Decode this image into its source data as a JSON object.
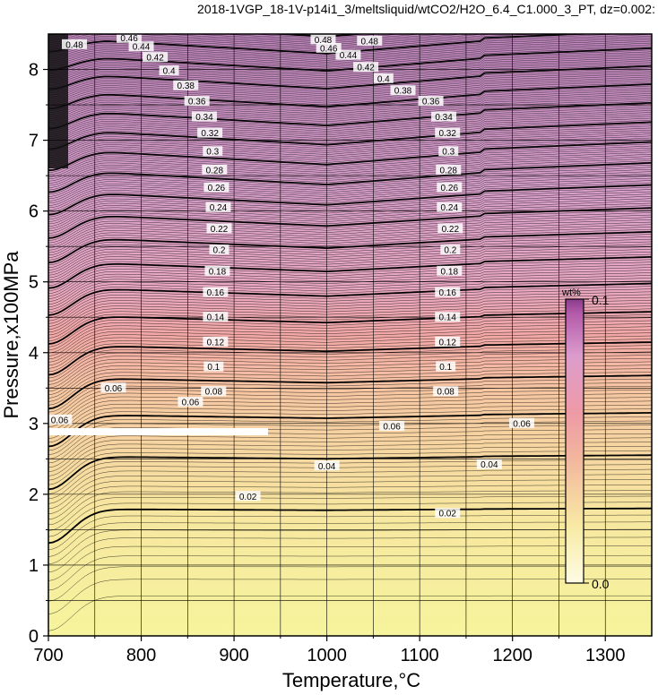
{
  "chart_data": {
    "type": "heatmap",
    "title": "2018-1VGP_18-1V-p14i1_3/meltsliquid/wtCO2/H2O_6.4_C1.000_3_PT, dz=0.002:",
    "xlabel": "Temperature,°C",
    "ylabel": "Pressure,x100MPa",
    "xlim": [
      700,
      1350
    ],
    "ylim": [
      0,
      8.5
    ],
    "x_ticks": [
      "700",
      "800",
      "900",
      "1000",
      "1100",
      "1200",
      "1300"
    ],
    "y_ticks": [
      "0",
      "1",
      "2",
      "3",
      "4",
      "5",
      "6",
      "7",
      "8"
    ],
    "grid": true,
    "colorbar": {
      "label": "wt%",
      "min_label": "0.0",
      "max_label": "0.1",
      "colors": [
        "#f8f4a0",
        "#f6c6a6",
        "#f09ca0",
        "#e6a6c6",
        "#c686c0",
        "#8a3c8c"
      ]
    },
    "contour_interval": 0.002,
    "major_contour_interval": 0.02,
    "contour_labels": [
      {
        "text": "0.02",
        "x": 915,
        "y": 1.97
      },
      {
        "text": "0.02",
        "x": 1130,
        "y": 1.73
      },
      {
        "text": "0.04",
        "x": 1000,
        "y": 2.4
      },
      {
        "text": "0.04",
        "x": 1175,
        "y": 2.42
      },
      {
        "text": "0.06",
        "x": 770,
        "y": 3.5
      },
      {
        "text": "0.06",
        "x": 853,
        "y": 3.3
      },
      {
        "text": "0.06",
        "x": 1070,
        "y": 2.96
      },
      {
        "text": "0.06",
        "x": 1210,
        "y": 3.0
      },
      {
        "text": "0.08",
        "x": 878,
        "y": 3.45
      },
      {
        "text": "0.08",
        "x": 1128,
        "y": 3.45
      },
      {
        "text": "0.1",
        "x": 878,
        "y": 3.8
      },
      {
        "text": "0.1",
        "x": 1128,
        "y": 3.8
      },
      {
        "text": "0.12",
        "x": 880,
        "y": 4.15
      },
      {
        "text": "0.12",
        "x": 1130,
        "y": 4.15
      },
      {
        "text": "0.14",
        "x": 880,
        "y": 4.5
      },
      {
        "text": "0.14",
        "x": 1130,
        "y": 4.5
      },
      {
        "text": "0.16",
        "x": 880,
        "y": 4.85
      },
      {
        "text": "0.16",
        "x": 1130,
        "y": 4.85
      },
      {
        "text": "0.18",
        "x": 882,
        "y": 5.15
      },
      {
        "text": "0.18",
        "x": 1132,
        "y": 5.15
      },
      {
        "text": "0.2",
        "x": 884,
        "y": 5.45
      },
      {
        "text": "0.2",
        "x": 1133,
        "y": 5.45
      },
      {
        "text": "0.22",
        "x": 884,
        "y": 5.75
      },
      {
        "text": "0.22",
        "x": 1133,
        "y": 5.75
      },
      {
        "text": "0.24",
        "x": 883,
        "y": 6.05
      },
      {
        "text": "0.24",
        "x": 1132,
        "y": 6.05
      },
      {
        "text": "0.26",
        "x": 881,
        "y": 6.33
      },
      {
        "text": "0.26",
        "x": 1132,
        "y": 6.33
      },
      {
        "text": "0.28",
        "x": 879,
        "y": 6.58
      },
      {
        "text": "0.28",
        "x": 1131,
        "y": 6.58
      },
      {
        "text": "0.3",
        "x": 877,
        "y": 6.84
      },
      {
        "text": "0.3",
        "x": 1131,
        "y": 6.84
      },
      {
        "text": "0.32",
        "x": 874,
        "y": 7.1
      },
      {
        "text": "0.32",
        "x": 1130,
        "y": 7.1
      },
      {
        "text": "0.34",
        "x": 868,
        "y": 7.33
      },
      {
        "text": "0.34",
        "x": 1126,
        "y": 7.33
      },
      {
        "text": "0.36",
        "x": 860,
        "y": 7.55
      },
      {
        "text": "0.36",
        "x": 1112,
        "y": 7.55
      },
      {
        "text": "0.38",
        "x": 848,
        "y": 7.77
      },
      {
        "text": "0.38",
        "x": 1082,
        "y": 7.7
      },
      {
        "text": "0.4",
        "x": 830,
        "y": 7.98
      },
      {
        "text": "0.4",
        "x": 1061,
        "y": 7.87
      },
      {
        "text": "0.42",
        "x": 815,
        "y": 8.17
      },
      {
        "text": "0.42",
        "x": 1042,
        "y": 8.03
      },
      {
        "text": "0.44",
        "x": 800,
        "y": 8.32
      },
      {
        "text": "0.44",
        "x": 1023,
        "y": 8.2
      },
      {
        "text": "0.46",
        "x": 787,
        "y": 8.44
      },
      {
        "text": "0.46",
        "x": 1002,
        "y": 8.3
      },
      {
        "text": "0.48",
        "x": 996,
        "y": 8.42
      },
      {
        "text": "0.48",
        "x": 1046,
        "y": 8.4
      },
      {
        "text": "0.48",
        "x": 728,
        "y": 8.35
      },
      {
        "text": "0.06",
        "x": 712,
        "y": 3.05
      }
    ]
  }
}
